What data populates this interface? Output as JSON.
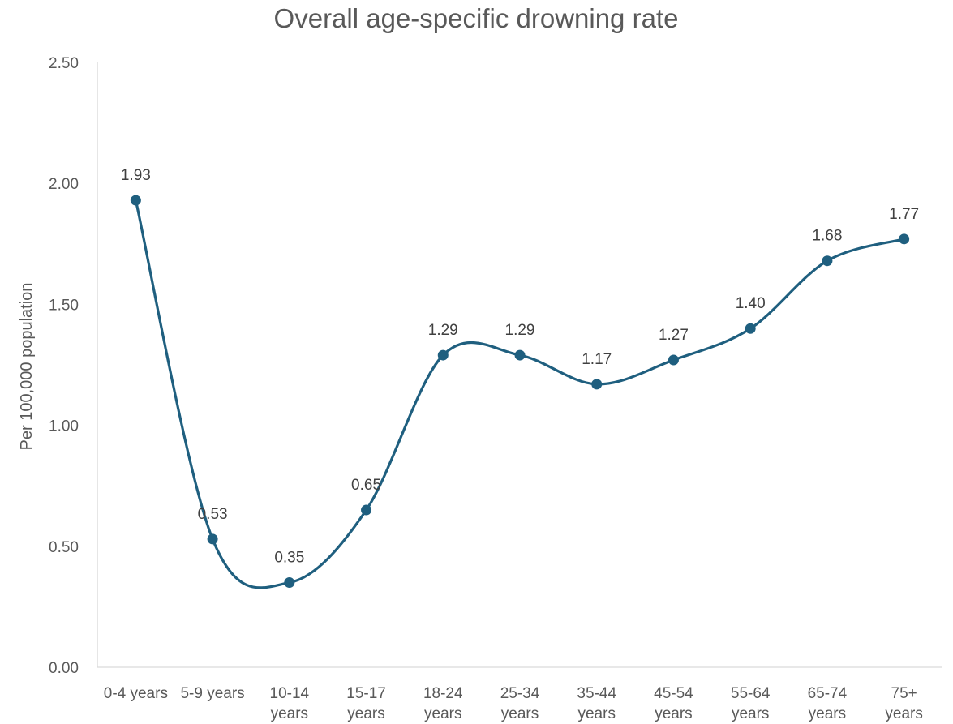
{
  "chart_data": {
    "type": "line",
    "title": "Overall age-specific drowning rate",
    "xlabel": "",
    "ylabel": "Per 100,000 population",
    "categories": [
      [
        "0-4 years"
      ],
      [
        "5-9 years"
      ],
      [
        "10-14",
        "years"
      ],
      [
        "15-17",
        "years"
      ],
      [
        "18-24",
        "years"
      ],
      [
        "25-34",
        "years"
      ],
      [
        "35-44",
        "years"
      ],
      [
        "45-54",
        "years"
      ],
      [
        "55-64",
        "years"
      ],
      [
        "65-74",
        "years"
      ],
      [
        "75+",
        "years"
      ]
    ],
    "series": [
      {
        "values": [
          1.93,
          0.53,
          0.35,
          0.65,
          1.29,
          1.29,
          1.17,
          1.27,
          1.4,
          1.68,
          1.77
        ],
        "labels": [
          "1.93",
          "0.53",
          "0.35",
          "0.65",
          "1.29",
          "1.29",
          "1.17",
          "1.27",
          "1.40",
          "1.68",
          "1.77"
        ],
        "color": "#1f5f7f",
        "smooth": true,
        "markers": true
      }
    ],
    "ylim": [
      0,
      2.5
    ],
    "yticks": [
      0,
      0.5,
      1.0,
      1.5,
      2.0,
      2.5
    ],
    "ytick_labels": [
      "0.00",
      "0.50",
      "1.00",
      "1.50",
      "2.00",
      "2.50"
    ],
    "grid": false,
    "legend": "none"
  }
}
